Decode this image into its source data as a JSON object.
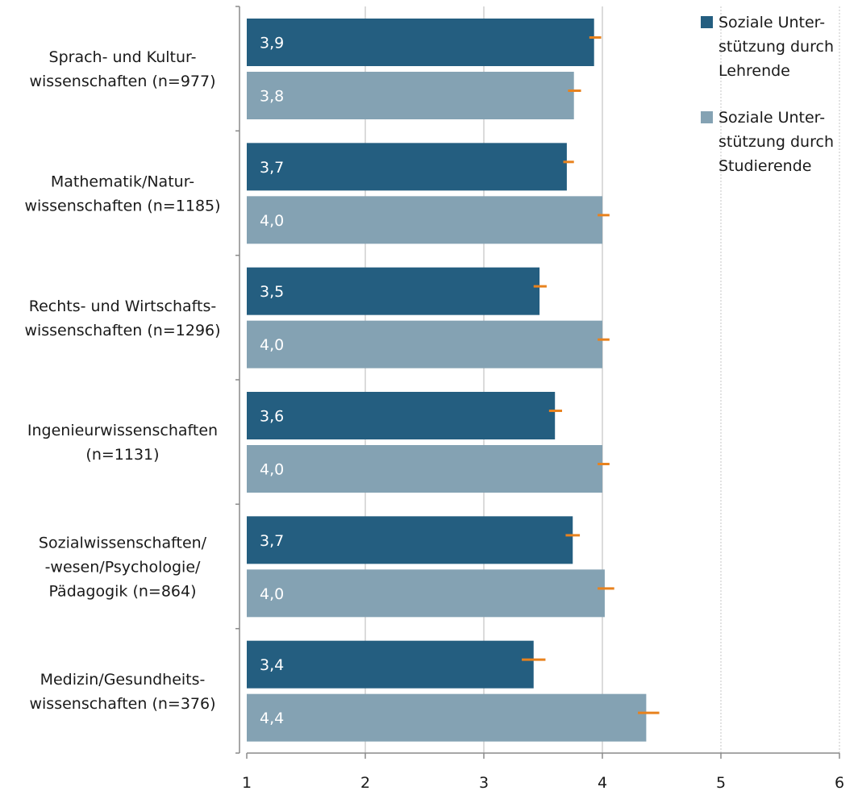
{
  "chart_data": {
    "type": "bar",
    "orientation": "horizontal",
    "categories": [
      [
        "Sprach- und Kultur-",
        "wissenschaften (n=977)"
      ],
      [
        "Mathematik/Natur-",
        "wissenschaften (n=1185)"
      ],
      [
        "Rechts- und Wirtschafts-",
        "wissenschaften (n=1296)"
      ],
      [
        "Ingenieurwissenschaften",
        "(n=1131)"
      ],
      [
        "Sozialwissenschaften/",
        "-wesen/Psychologie/",
        "Pädagogik (n=864)"
      ],
      [
        "Medizin/Gesundheits-",
        "wissenschaften (n=376)"
      ]
    ],
    "series": [
      {
        "name": [
          "Soziale Unter-",
          "stützung durch",
          "Lehrende"
        ],
        "color": "#245e80",
        "values": [
          3.93,
          3.7,
          3.47,
          3.6,
          3.75,
          3.42
        ],
        "labels": [
          "3,9",
          "3,7",
          "3,5",
          "3,6",
          "3,7",
          "3,4"
        ],
        "error": [
          [
            3.89,
            3.99
          ],
          [
            3.67,
            3.76
          ],
          [
            3.42,
            3.53
          ],
          [
            3.55,
            3.66
          ],
          [
            3.69,
            3.81
          ],
          [
            3.32,
            3.52
          ]
        ]
      },
      {
        "name": [
          "Soziale Unter-",
          "stützung durch",
          "Studierende"
        ],
        "color": "#84a2b3",
        "values": [
          3.76,
          4.0,
          4.0,
          4.0,
          4.02,
          4.37
        ],
        "labels": [
          "3,8",
          "4,0",
          "4,0",
          "4,0",
          "4,0",
          "4,4"
        ],
        "error": [
          [
            3.71,
            3.82
          ],
          [
            3.96,
            4.06
          ],
          [
            3.96,
            4.06
          ],
          [
            3.96,
            4.06
          ],
          [
            3.96,
            4.1
          ],
          [
            4.3,
            4.48
          ]
        ]
      }
    ],
    "xlim": [
      1,
      6
    ],
    "xticks": [
      "1",
      "2",
      "3",
      "4",
      "5",
      "6"
    ],
    "error_bar_color": "#e8821e",
    "grid": "vertical",
    "legend_position": "top-right",
    "xlabel": "",
    "ylabel": "",
    "title": ""
  }
}
